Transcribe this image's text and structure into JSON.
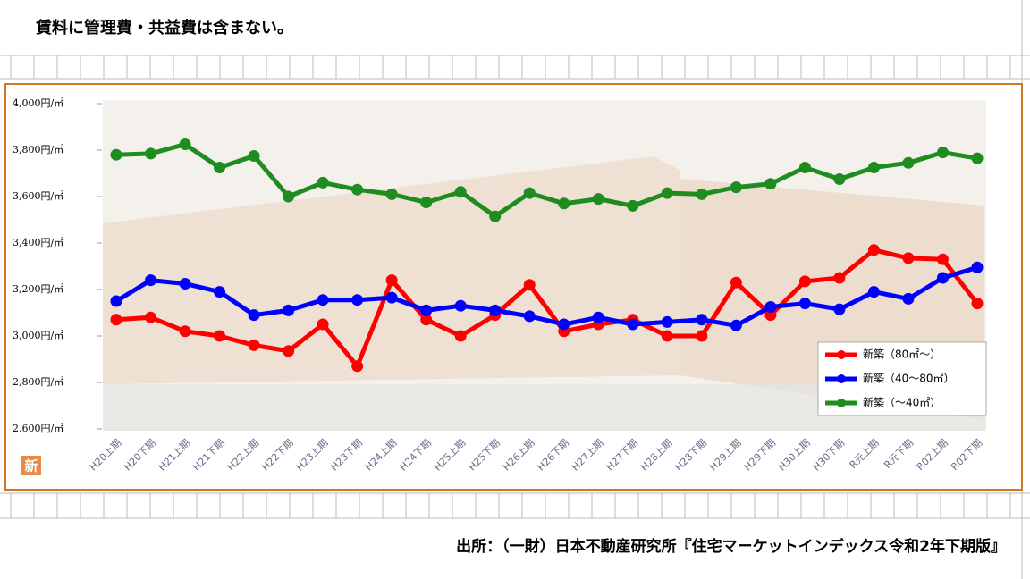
{
  "note": "賃料に管理費・共益費は含まない。",
  "source": "出所：（一財）日本不動産研究所『住宅マーケットインデックス令和2年下期版』",
  "badge": "新",
  "chart_data": {
    "type": "line",
    "categories": [
      "H20上期",
      "H20下期",
      "H21上期",
      "H21下期",
      "H22上期",
      "H22下期",
      "H23上期",
      "H23下期",
      "H24上期",
      "H24下期",
      "H25上期",
      "H25下期",
      "H26上期",
      "H26下期",
      "H27上期",
      "H27下期",
      "H28上期",
      "H28下期",
      "H29上期",
      "H29下期",
      "H30上期",
      "H30下期",
      "R元上期",
      "R元下期",
      "R02上期",
      "R02下期"
    ],
    "series": [
      {
        "name": "新築（80㎡～）",
        "color": "#ff0000",
        "values": [
          3070,
          3080,
          3020,
          3000,
          2960,
          2935,
          3050,
          2870,
          3240,
          3070,
          3000,
          3090,
          3220,
          3020,
          3050,
          3070,
          3000,
          3000,
          3230,
          3090,
          3235,
          3250,
          3370,
          3335,
          3330,
          3140
        ]
      },
      {
        "name": "新築（40～80㎡）",
        "color": "#0000ff",
        "values": [
          3150,
          3240,
          3225,
          3190,
          3090,
          3110,
          3155,
          3155,
          3165,
          3110,
          3130,
          3110,
          3085,
          3050,
          3080,
          3050,
          3060,
          3070,
          3045,
          3125,
          3140,
          3115,
          3190,
          3160,
          3250,
          3295
        ]
      },
      {
        "name": "新築（～40㎡）",
        "color": "#1e8c1e",
        "values": [
          3780,
          3785,
          3825,
          3725,
          3775,
          3600,
          3660,
          3630,
          3610,
          3575,
          3620,
          3515,
          3615,
          3570,
          3590,
          3560,
          3615,
          3610,
          3640,
          3655,
          3725,
          3675,
          3725,
          3745,
          3790,
          3765
        ]
      }
    ],
    "ylim": [
      2600,
      4000
    ],
    "yticks": [
      {
        "value": 2600,
        "label": "2,600円/㎡"
      },
      {
        "value": 2800,
        "label": "2,800円/㎡"
      },
      {
        "value": 3000,
        "label": "3,000円/㎡"
      },
      {
        "value": 3200,
        "label": "3,200円/㎡"
      },
      {
        "value": 3400,
        "label": "3,400円/㎡"
      },
      {
        "value": 3600,
        "label": "3,600円/㎡"
      },
      {
        "value": 3800,
        "label": "3,800円/㎡"
      },
      {
        "value": 4000,
        "label": "4,000円/㎡"
      }
    ],
    "legend": "lower-right"
  }
}
